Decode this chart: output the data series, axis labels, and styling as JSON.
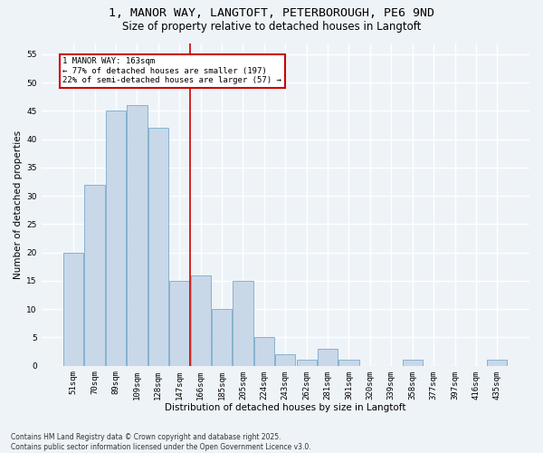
{
  "title_line1": "1, MANOR WAY, LANGTOFT, PETERBOROUGH, PE6 9ND",
  "title_line2": "Size of property relative to detached houses in Langtoft",
  "xlabel": "Distribution of detached houses by size in Langtoft",
  "ylabel": "Number of detached properties",
  "categories": [
    "51sqm",
    "70sqm",
    "89sqm",
    "109sqm",
    "128sqm",
    "147sqm",
    "166sqm",
    "185sqm",
    "205sqm",
    "224sqm",
    "243sqm",
    "262sqm",
    "281sqm",
    "301sqm",
    "320sqm",
    "339sqm",
    "358sqm",
    "377sqm",
    "397sqm",
    "416sqm",
    "435sqm"
  ],
  "values": [
    20,
    32,
    45,
    46,
    42,
    15,
    16,
    10,
    15,
    5,
    2,
    1,
    3,
    1,
    0,
    0,
    1,
    0,
    0,
    0,
    1
  ],
  "bar_color": "#c8d8e8",
  "bar_edge_color": "#7aaacb",
  "vline_x": 5.5,
  "vline_color": "#cc0000",
  "annotation_text": "1 MANOR WAY: 163sqm\n← 77% of detached houses are smaller (197)\n22% of semi-detached houses are larger (57) →",
  "annotation_box_color": "#ffffff",
  "annotation_box_edge": "#cc0000",
  "annotation_fontsize": 6.5,
  "footnote": "Contains HM Land Registry data © Crown copyright and database right 2025.\nContains public sector information licensed under the Open Government Licence v3.0.",
  "ylim": [
    0,
    57
  ],
  "yticks": [
    0,
    5,
    10,
    15,
    20,
    25,
    30,
    35,
    40,
    45,
    50,
    55
  ],
  "background_color": "#eef3f8",
  "plot_background_color": "#eef3f8",
  "grid_color": "#ffffff",
  "title_fontsize": 9.5,
  "subtitle_fontsize": 8.5,
  "axis_label_fontsize": 7.5,
  "tick_fontsize": 6.5,
  "footnote_fontsize": 5.5
}
